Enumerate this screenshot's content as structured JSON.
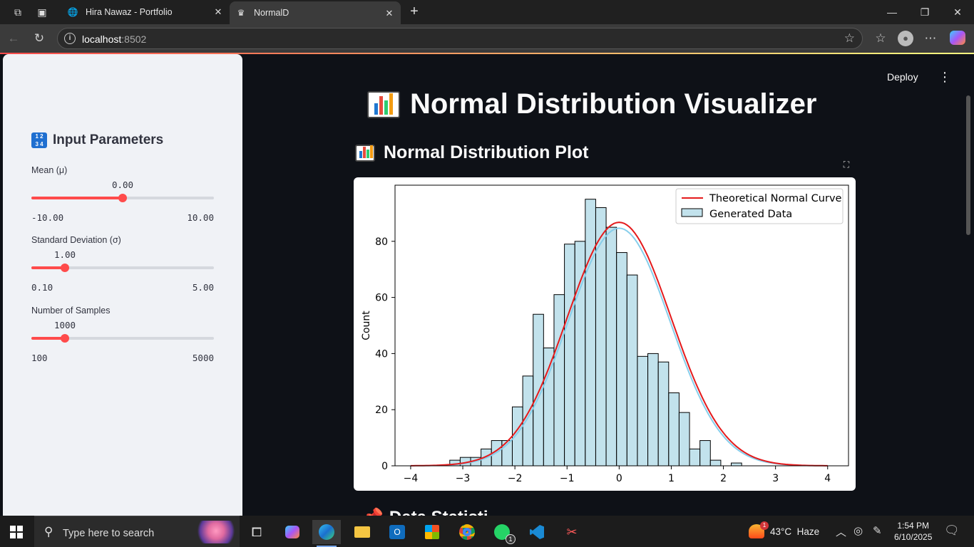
{
  "browser": {
    "tabs": [
      {
        "title": "Hira Nawaz - Portfolio",
        "favicon": "globe-icon",
        "active": false
      },
      {
        "title": "NormalD",
        "favicon": "streamlit-crown-icon",
        "active": true
      }
    ],
    "url_host": "localhost",
    "url_port": ":8502"
  },
  "app": {
    "deploy_label": "Deploy",
    "title": "Normal Distribution Visualizer",
    "subtitle": "Normal Distribution Plot",
    "next_heading": "Data Statisti",
    "colors": {
      "accent": "#ff4b4b",
      "sidebar_bg": "#f0f2f6",
      "main_bg": "#0e1117"
    }
  },
  "sidebar": {
    "title": "Input Parameters",
    "sliders": [
      {
        "label": "Mean (μ)",
        "value": "0.00",
        "min": "-10.00",
        "max": "10.00",
        "fraction": 0.5
      },
      {
        "label": "Standard Deviation (σ)",
        "value": "1.00",
        "min": "0.10",
        "max": "5.00",
        "fraction": 0.1837
      },
      {
        "label": "Number of Samples",
        "value": "1000",
        "min": "100",
        "max": "5000",
        "fraction": 0.1837
      }
    ]
  },
  "chart_data": {
    "type": "bar",
    "ylabel": "Count",
    "xlabel": "",
    "xlim": [
      -4.3,
      4.4
    ],
    "ylim": [
      0,
      100
    ],
    "xticks": [
      -4,
      -3,
      -2,
      -1,
      0,
      1,
      2,
      3,
      4
    ],
    "xtick_labels": [
      "−4",
      "−3",
      "−2",
      "−1",
      "0",
      "1",
      "2",
      "3",
      "4"
    ],
    "yticks": [
      0,
      20,
      40,
      60,
      80
    ],
    "legend_position": "top-right",
    "bins": {
      "start": -3.25,
      "width": 0.2,
      "counts": [
        2,
        3,
        3,
        6,
        9,
        9,
        21,
        32,
        54,
        42,
        61,
        79,
        80,
        95,
        92,
        85,
        76,
        68,
        39,
        40,
        37,
        26,
        19,
        6,
        9,
        2,
        0,
        1
      ]
    },
    "series": [
      {
        "name": "Theoretical Normal Curve",
        "kind": "line",
        "color": "#e41a1c",
        "mean": 0,
        "sd": 1,
        "n": 1000,
        "bin_width": 0.2175
      },
      {
        "name": "Generated Data",
        "kind": "histogram",
        "color": "#add8e6",
        "kde_color": "#87ceeb"
      }
    ]
  },
  "taskbar": {
    "search_placeholder": "Type here to search",
    "weather_badge": "1",
    "weather": "43°C  Haze",
    "time": "1:54 PM",
    "date": "6/10/2025",
    "whatsapp_badge": "1"
  }
}
